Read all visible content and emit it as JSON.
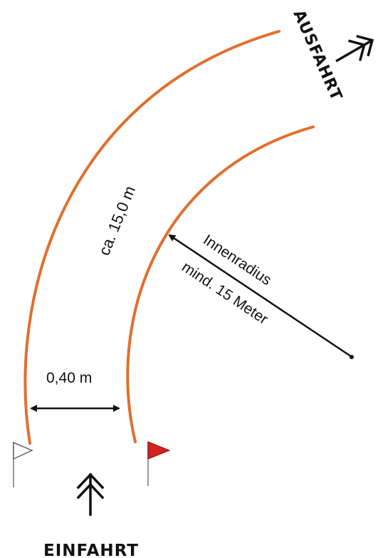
{
  "labels": {
    "exit": "AUSFAHRT",
    "entry": "EINFAHRT",
    "arc_length": "ca. 15,0 m",
    "lane_width": "0,40 m",
    "radius_line1": "Innenradius",
    "radius_line2": "mind. 15 Meter"
  },
  "colors": {
    "track": "#e0702e",
    "flag_red": "#d42020",
    "flag_white": "#ffffff",
    "ink": "#111111"
  },
  "icons": {
    "exit_arrow": "double-chevron-up-right-icon",
    "entry_arrow": "double-chevron-up-icon",
    "start_flag_white": "white-flag-icon",
    "start_flag_red": "red-flag-icon"
  }
}
